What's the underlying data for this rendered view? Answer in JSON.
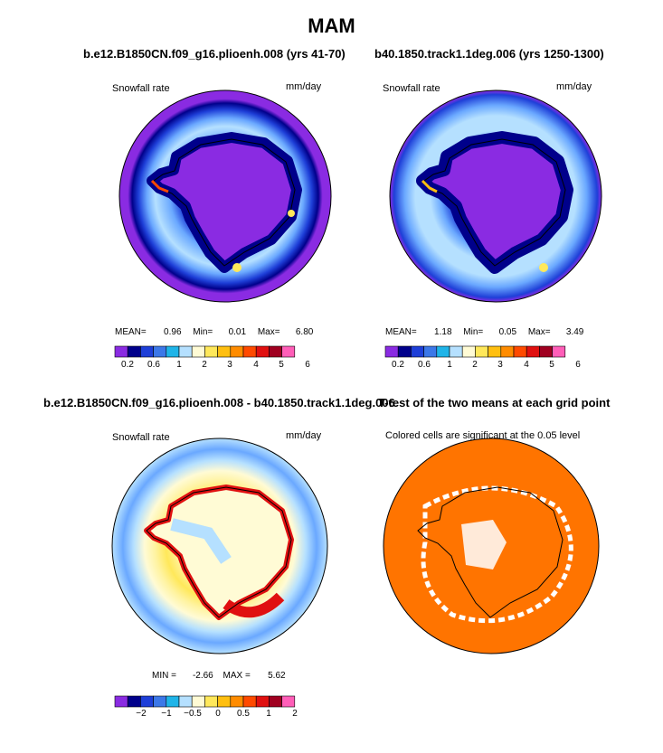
{
  "main_title": "MAM",
  "colors": {
    "palette": [
      "#8a2be2",
      "#00008b",
      "#1e3fd8",
      "#3c78e8",
      "#1fb4e8",
      "#b5e0ff",
      "#fffbd5",
      "#ffe85a",
      "#ffbf10",
      "#ff8c00",
      "#ff4a00",
      "#e01010",
      "#a00020",
      "#ff5eb8"
    ],
    "ocean_orange": "#ff7400",
    "sig_white": "#ffffff"
  },
  "panels": {
    "a": {
      "title": "b.e12.B1850CN.f09_g16.plioenh.008 (yrs 41-70)",
      "var_label": "Snowfall rate",
      "units": "mm/day",
      "stats": {
        "mean_label": "MEAN=",
        "mean": "0.96",
        "min_label": "Min=",
        "min": "0.01",
        "max_label": "Max=",
        "max": "6.80"
      },
      "colorbar_ticks": [
        "0.2",
        "0.6",
        "1",
        "2",
        "3",
        "4",
        "5",
        "6"
      ]
    },
    "b": {
      "title": "b40.1850.track1.1deg.006 (yrs 1250-1300)",
      "var_label": "Snowfall rate",
      "units": "mm/day",
      "stats": {
        "mean_label": "MEAN=",
        "mean": "1.18",
        "min_label": "Min=",
        "min": "0.05",
        "max_label": "Max=",
        "max": "3.49"
      },
      "colorbar_ticks": [
        "0.2",
        "0.6",
        "1",
        "2",
        "3",
        "4",
        "5",
        "6"
      ]
    },
    "c": {
      "title": "b.e12.B1850CN.f09_g16.plioenh.008 - b40.1850.track1.1deg.006",
      "var_label": "Snowfall rate",
      "units": "mm/day",
      "stats": {
        "min_label": "MIN =",
        "min": "-2.66",
        "max_label": "MAX =",
        "max": "5.62"
      },
      "colorbar_ticks": [
        "−2",
        "−1",
        "−0.5",
        "0",
        "0.5",
        "1",
        "2"
      ]
    },
    "d": {
      "title": "T-test of the two means at each grid point",
      "note": "Colored cells are significant at the 0.05 level"
    }
  },
  "chart_data": [
    {
      "type": "heatmap",
      "projection": "south polar stereographic",
      "variable": "Snowfall rate",
      "units": "mm/day",
      "levels": [
        0.2,
        0.4,
        0.6,
        0.8,
        1,
        1.5,
        2,
        2.5,
        3,
        3.5,
        4,
        4.5,
        5,
        6
      ],
      "mean": 0.96,
      "min": 0.01,
      "max": 6.8
    },
    {
      "type": "heatmap",
      "projection": "south polar stereographic",
      "variable": "Snowfall rate",
      "units": "mm/day",
      "levels": [
        0.2,
        0.4,
        0.6,
        0.8,
        1,
        1.5,
        2,
        2.5,
        3,
        3.5,
        4,
        4.5,
        5,
        6
      ],
      "mean": 1.18,
      "min": 0.05,
      "max": 3.49
    },
    {
      "type": "heatmap",
      "projection": "south polar stereographic",
      "variable": "Snowfall rate difference",
      "units": "mm/day",
      "levels": [
        -2.5,
        -2,
        -1.5,
        -1,
        -0.75,
        -0.5,
        -0.25,
        0,
        0.25,
        0.5,
        0.75,
        1,
        1.5,
        2
      ],
      "min": -2.66,
      "max": 5.62
    },
    {
      "type": "heatmap",
      "projection": "south polar stereographic",
      "variable": "T-test significance mask",
      "significance_level": 0.05
    }
  ]
}
